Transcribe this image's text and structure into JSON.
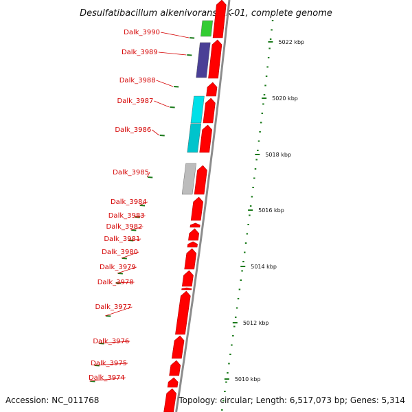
{
  "title": "Desulfatibacillum alkenivorans AK-01, complete genome",
  "accession": "Accession: NC_011768",
  "topology": "Topology: circular; Length: 6,517,073 bp; Genes: 5,314",
  "colors": {
    "cds": "#ff0000",
    "cds_shade": "#b80000",
    "label": "#d40000",
    "tick": "#1a7a1a",
    "backbone": "#8c8c8c"
  },
  "scale_labels": [
    "5022 kbp",
    "5020 kbp",
    "5018 kbp",
    "5016 kbp",
    "5014 kbp",
    "5012 kbp",
    "5010 kbp"
  ],
  "genes": [
    {
      "label": "Dalk_3990",
      "color": "#33cc33"
    },
    {
      "label": "Dalk_3989",
      "color": "#4a3f96"
    },
    {
      "label": "Dalk_3988",
      "color": ""
    },
    {
      "label": "Dalk_3987",
      "color": "#00e0e8"
    },
    {
      "label": "Dalk_3986",
      "color": "#00c4cc"
    },
    {
      "label": "Dalk_3985",
      "color": "#bcbcbc"
    },
    {
      "label": "Dalk_3984",
      "color": ""
    },
    {
      "label": "Dalk_3983",
      "color": ""
    },
    {
      "label": "Dalk_3982",
      "color": ""
    },
    {
      "label": "Dalk_3981",
      "color": ""
    },
    {
      "label": "Dalk_3980",
      "color": ""
    },
    {
      "label": "Dalk_3979",
      "color": ""
    },
    {
      "label": "Dalk_3978",
      "color": ""
    },
    {
      "label": "Dalk_3977",
      "color": ""
    },
    {
      "label": "Dalk_3976",
      "color": ""
    },
    {
      "label": "Dalk_3975",
      "color": ""
    },
    {
      "label": "Dalk_3974",
      "color": ""
    }
  ]
}
